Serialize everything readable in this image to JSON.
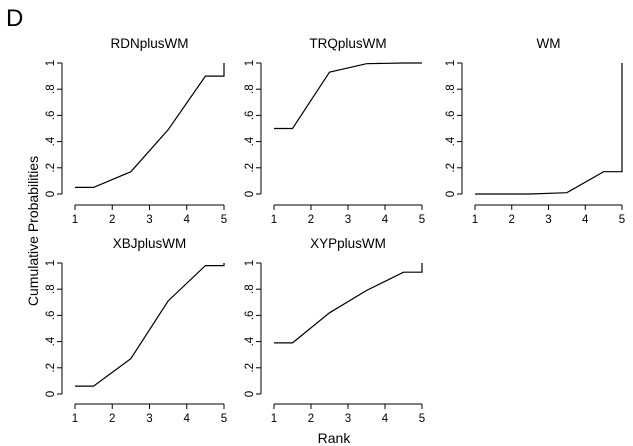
{
  "figure": {
    "panel_label": "D",
    "xlabel": "Rank",
    "ylabel": "Cumulative Probabilities"
  },
  "chart_data": [
    {
      "type": "line",
      "title": "RDNplusWM",
      "x": [
        1,
        1.5,
        2.5,
        3.5,
        4.5,
        5,
        5
      ],
      "values": [
        0.05,
        0.05,
        0.17,
        0.49,
        0.9,
        0.9,
        1.0
      ],
      "xlim": [
        1,
        5
      ],
      "ylim": [
        0,
        1
      ],
      "xticks": [
        "1",
        "2",
        "3",
        "4",
        "5"
      ],
      "yticks": [
        "0",
        ".2",
        ".4",
        ".6",
        ".8",
        "1"
      ],
      "grid": false
    },
    {
      "type": "line",
      "title": "TRQplusWM",
      "x": [
        1,
        1.5,
        2.5,
        3.5,
        4.5,
        5
      ],
      "values": [
        0.5,
        0.5,
        0.93,
        0.995,
        1.0,
        1.0
      ],
      "xlim": [
        1,
        5
      ],
      "ylim": [
        0,
        1
      ],
      "xticks": [
        "1",
        "2",
        "3",
        "4",
        "5"
      ],
      "yticks": [
        "0",
        ".2",
        ".4",
        ".6",
        ".8",
        "1"
      ],
      "grid": false
    },
    {
      "type": "line",
      "title": "WM",
      "x": [
        1,
        1.5,
        2.5,
        3.5,
        4.5,
        5,
        5
      ],
      "values": [
        0.0,
        0.0,
        0.0,
        0.01,
        0.17,
        0.17,
        1.0
      ],
      "xlim": [
        1,
        5
      ],
      "ylim": [
        0,
        1
      ],
      "xticks": [
        "1",
        "2",
        "3",
        "4",
        "5"
      ],
      "yticks": [
        "0",
        ".2",
        ".4",
        ".6",
        ".8",
        "1"
      ],
      "grid": false
    },
    {
      "type": "line",
      "title": "XBJplusWM",
      "x": [
        1,
        1.5,
        2.5,
        3.5,
        4.5,
        5,
        5
      ],
      "values": [
        0.06,
        0.06,
        0.27,
        0.71,
        0.98,
        0.98,
        1.0
      ],
      "xlim": [
        1,
        5
      ],
      "ylim": [
        0,
        1
      ],
      "xticks": [
        "1",
        "2",
        "3",
        "4",
        "5"
      ],
      "yticks": [
        "0",
        ".2",
        ".4",
        ".6",
        ".8",
        "1"
      ],
      "grid": false
    },
    {
      "type": "line",
      "title": "XYPplusWM",
      "x": [
        1,
        1.5,
        2.5,
        3.5,
        4.5,
        5,
        5
      ],
      "values": [
        0.39,
        0.39,
        0.62,
        0.79,
        0.93,
        0.93,
        1.0
      ],
      "xlim": [
        1,
        5
      ],
      "ylim": [
        0,
        1
      ],
      "xticks": [
        "1",
        "2",
        "3",
        "4",
        "5"
      ],
      "yticks": [
        "0",
        ".2",
        ".4",
        ".6",
        ".8",
        "1"
      ],
      "grid": false
    }
  ]
}
